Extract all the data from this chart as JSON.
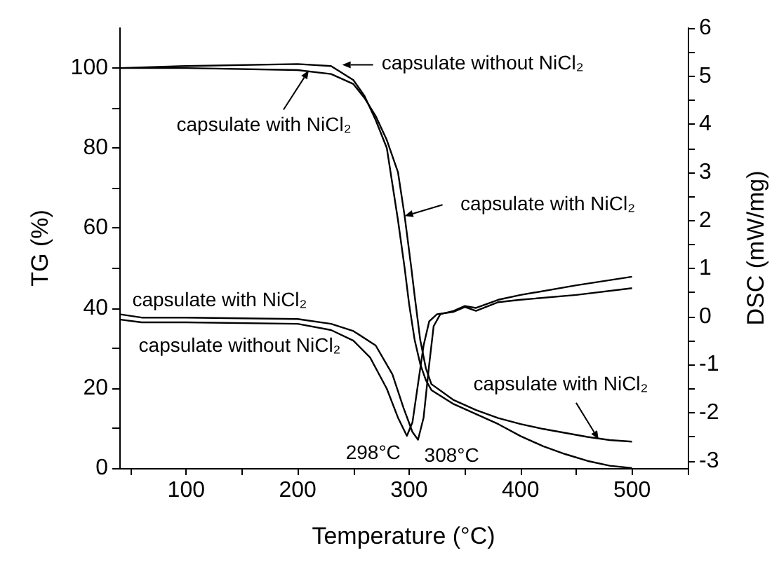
{
  "chart_data": {
    "type": "line",
    "xlabel": "Temperature (°C)",
    "ylabel": "TG (%)",
    "y2label": "DSC (mW/mg)",
    "xlim": [
      40,
      550
    ],
    "ylim": [
      0,
      110
    ],
    "y2lim": [
      -3.15,
      6
    ],
    "xticks": [
      {
        "value": 50,
        "label": null
      },
      100,
      {
        "value": 150,
        "label": null
      },
      200,
      {
        "value": 250,
        "label": null
      },
      300,
      {
        "value": 350,
        "label": null
      },
      400,
      {
        "value": 450,
        "label": null
      },
      500,
      {
        "value": 550,
        "label": null
      }
    ],
    "yticks": [
      0,
      {
        "value": 10,
        "label": null
      },
      20,
      {
        "value": 30,
        "label": null
      },
      40,
      {
        "value": 50,
        "label": null
      },
      60,
      {
        "value": 70,
        "label": null
      },
      80,
      {
        "value": 90,
        "label": null
      },
      100
    ],
    "y2ticks": [
      -3,
      {
        "value": -2.5,
        "label": null
      },
      -2,
      {
        "value": -1.5,
        "label": null
      },
      -1,
      {
        "value": -0.5,
        "label": null
      },
      0,
      {
        "value": 0.5,
        "label": null
      },
      1,
      {
        "value": 1.5,
        "label": null
      },
      2,
      {
        "value": 2.5,
        "label": null
      },
      3,
      {
        "value": 3.5,
        "label": null
      },
      4,
      {
        "value": 4.5,
        "label": null
      },
      5,
      {
        "value": 5.5,
        "label": null
      },
      6
    ],
    "line_style": "solid",
    "series": [
      {
        "color": "#000000",
        "x": [
          40,
          100,
          200,
          230,
          250,
          260,
          270,
          280,
          290,
          296,
          300,
          305,
          310,
          315,
          320,
          340,
          360,
          380,
          400,
          420,
          440,
          460,
          480,
          500
        ],
        "values": [
          100,
          100.5,
          101,
          100.5,
          97,
          93,
          87,
          80,
          62,
          50,
          41,
          32,
          26,
          22,
          19.5,
          16,
          13.5,
          11,
          8,
          5.5,
          3.5,
          1.8,
          0.6,
          0
        ]
      },
      {
        "color": "#000000",
        "x": [
          40,
          100,
          200,
          230,
          250,
          260,
          270,
          280,
          290,
          296,
          302,
          305,
          310,
          315,
          320,
          340,
          360,
          380,
          400,
          420,
          440,
          460,
          480,
          500
        ],
        "values": [
          100,
          100,
          99.5,
          98.5,
          96,
          92.5,
          88,
          82,
          74,
          63,
          50,
          43,
          32,
          25,
          21,
          17,
          14.5,
          12.5,
          11,
          9.8,
          8.8,
          7.8,
          7,
          6.6
        ]
      },
      {
        "color": "#000000",
        "axis": "y2",
        "x": [
          40,
          60,
          100,
          200,
          230,
          250,
          265,
          280,
          290,
          298,
          303,
          308,
          313,
          318,
          325,
          340,
          350,
          360,
          380,
          400,
          450,
          500
        ],
        "values": [
          -0.06,
          -0.12,
          -0.12,
          -0.15,
          -0.28,
          -0.5,
          -0.85,
          -1.5,
          -2.1,
          -2.48,
          -2.2,
          -1.4,
          -0.6,
          -0.1,
          0.05,
          0.1,
          0.2,
          0.12,
          0.3,
          0.35,
          0.45,
          0.59
        ]
      },
      {
        "color": "#000000",
        "axis": "y2",
        "x": [
          40,
          60,
          100,
          200,
          230,
          250,
          270,
          285,
          295,
          303,
          308,
          313,
          318,
          322,
          328,
          340,
          350,
          360,
          380,
          400,
          450,
          500
        ],
        "values": [
          0.05,
          -0.02,
          -0.02,
          -0.05,
          -0.15,
          -0.3,
          -0.6,
          -1.2,
          -1.9,
          -2.4,
          -2.56,
          -2.1,
          -1.0,
          -0.2,
          0.05,
          0.12,
          0.22,
          0.18,
          0.35,
          0.45,
          0.65,
          0.83
        ]
      }
    ],
    "annotations": [
      {
        "text": "capsulate without NiCl₂",
        "x": 240,
        "y": 100.8
      },
      {
        "text": "capsulate with NiCl₂",
        "x": 210,
        "y": 99.4
      },
      {
        "text": "capsulate with NiCl₂",
        "x": 296,
        "y": 63
      },
      {
        "text": "capsulate with NiCl₂",
        "x": 130,
        "y": 38
      },
      {
        "text": "capsulate without NiCl₂",
        "x": 148,
        "y": 36.5
      },
      {
        "text": "298°C",
        "x": 298,
        "y": 8.5
      },
      {
        "text": "308°C",
        "x": 308,
        "y": 7.5
      },
      {
        "text": "capsulate with NiCl₂",
        "x": 470,
        "y": 7.2
      }
    ]
  }
}
